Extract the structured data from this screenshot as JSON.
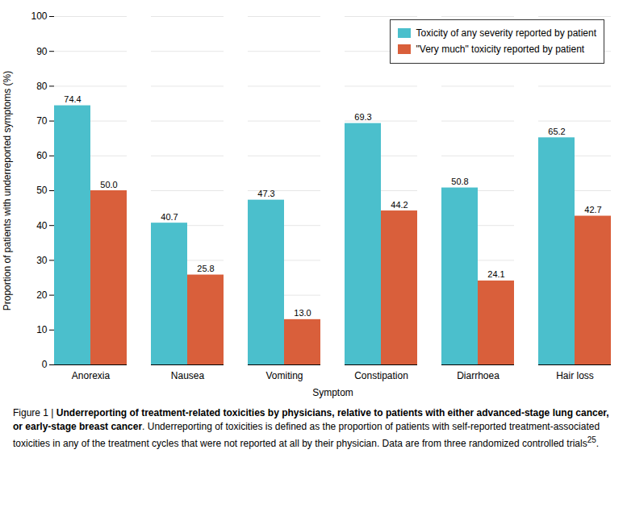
{
  "chart_data": {
    "type": "bar",
    "categories": [
      "Anorexia",
      "Nausea",
      "Vomiting",
      "Constipation",
      "Diarrhoea",
      "Hair loss"
    ],
    "series": [
      {
        "name": "Toxicity of any severity reported by patient",
        "color": "#4BBFCC",
        "values": [
          74.4,
          40.7,
          47.3,
          69.3,
          50.8,
          65.2
        ]
      },
      {
        "name": "\"Very much\" toxicity reported by patient",
        "color": "#D95F3B",
        "values": [
          50.0,
          25.8,
          13.0,
          44.2,
          24.1,
          42.7
        ],
        "value_labels": [
          "50.0",
          "25.8",
          "13.0",
          "44.2",
          "24.1",
          "42.7"
        ]
      }
    ],
    "xlabel": "Symptom",
    "ylabel": "Proportion of patients with underreported symptoms (%)",
    "ylim": [
      0,
      100
    ],
    "yticks": [
      0,
      10,
      20,
      30,
      40,
      50,
      60,
      70,
      80,
      90,
      100
    ],
    "grid": true,
    "legend": "upper right",
    "data_labels": true,
    "caption": [
      {
        "text": "Figure 1 | "
      },
      {
        "text": "Underreporting of treatment-related toxicities by physicians, relative to patients with either advanced-stage lung cancer, or early-stage breast cancer",
        "bold": true
      },
      {
        "text": ". Underreporting of toxicities is defined as the proportion of patients with self-reported treatment-associated toxicities in any of the treatment cycles that were not reported at all by their physician. Data are from three randomized controlled trials"
      },
      {
        "text": "25",
        "superscript": true
      },
      {
        "text": "."
      }
    ]
  }
}
